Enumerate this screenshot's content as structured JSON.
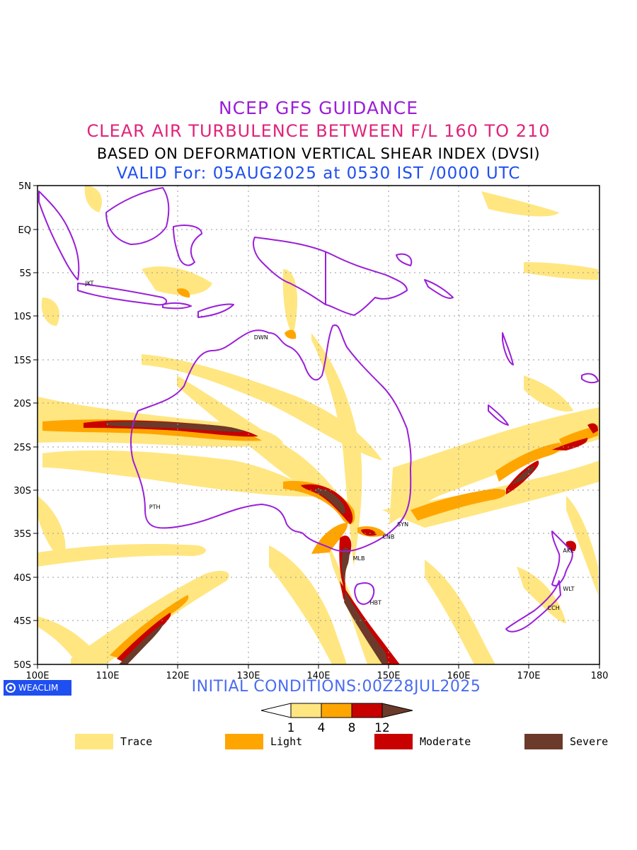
{
  "header": {
    "line1": "NCEP GFS GUIDANCE",
    "line2": "CLEAR AIR TURBULENCE BETWEEN F/L 160 TO 210",
    "line3": "BASED ON DEFORMATION VERTICAL SHEAR INDEX (DVSI)",
    "line4": "VALID For: 05AUG2025 at 0530 IST /0000 UTC"
  },
  "map": {
    "lon_range": [
      100,
      180
    ],
    "lat_range": [
      -50,
      5
    ],
    "x_ticks": [
      "100E",
      "110E",
      "120E",
      "130E",
      "140E",
      "150E",
      "160E",
      "170E",
      "180"
    ],
    "y_ticks": [
      "5N",
      "EQ",
      "5S",
      "10S",
      "15S",
      "20S",
      "25S",
      "30S",
      "35S",
      "40S",
      "45S",
      "50S"
    ],
    "cities": [
      {
        "label": "JKT",
        "lon": 106.8,
        "lat": -6.2
      },
      {
        "label": "DWN",
        "lon": 130.8,
        "lat": -12.4
      },
      {
        "label": "PTH",
        "lon": 115.9,
        "lat": -31.9
      },
      {
        "label": "SYN",
        "lon": 151.2,
        "lat": -33.9
      },
      {
        "label": "CNB",
        "lon": 149.1,
        "lat": -35.3
      },
      {
        "label": "MLB",
        "lon": 144.9,
        "lat": -37.8
      },
      {
        "label": "HBT",
        "lon": 147.3,
        "lat": -42.9
      },
      {
        "label": "AKL",
        "lon": 174.8,
        "lat": -36.9
      },
      {
        "label": "WLT",
        "lon": 174.8,
        "lat": -41.3
      },
      {
        "label": "CCH",
        "lon": 172.6,
        "lat": -43.5
      }
    ]
  },
  "footer": {
    "brand": "WEACLIM",
    "initial_conditions": "INITIAL CONDITIONS:00Z28JUL2025"
  },
  "colorbar": {
    "ticks": [
      "1",
      "4",
      "8",
      "12"
    ],
    "colors": [
      "#ffffff",
      "#ffe680",
      "#ffa500",
      "#c80000",
      "#6b3a2a"
    ]
  },
  "legend": [
    {
      "label": "Trace",
      "color": "#ffe680"
    },
    {
      "label": "Light",
      "color": "#ffa500"
    },
    {
      "label": "Moderate",
      "color": "#c80000"
    },
    {
      "label": "Severe",
      "color": "#6b3a2a"
    }
  ]
}
